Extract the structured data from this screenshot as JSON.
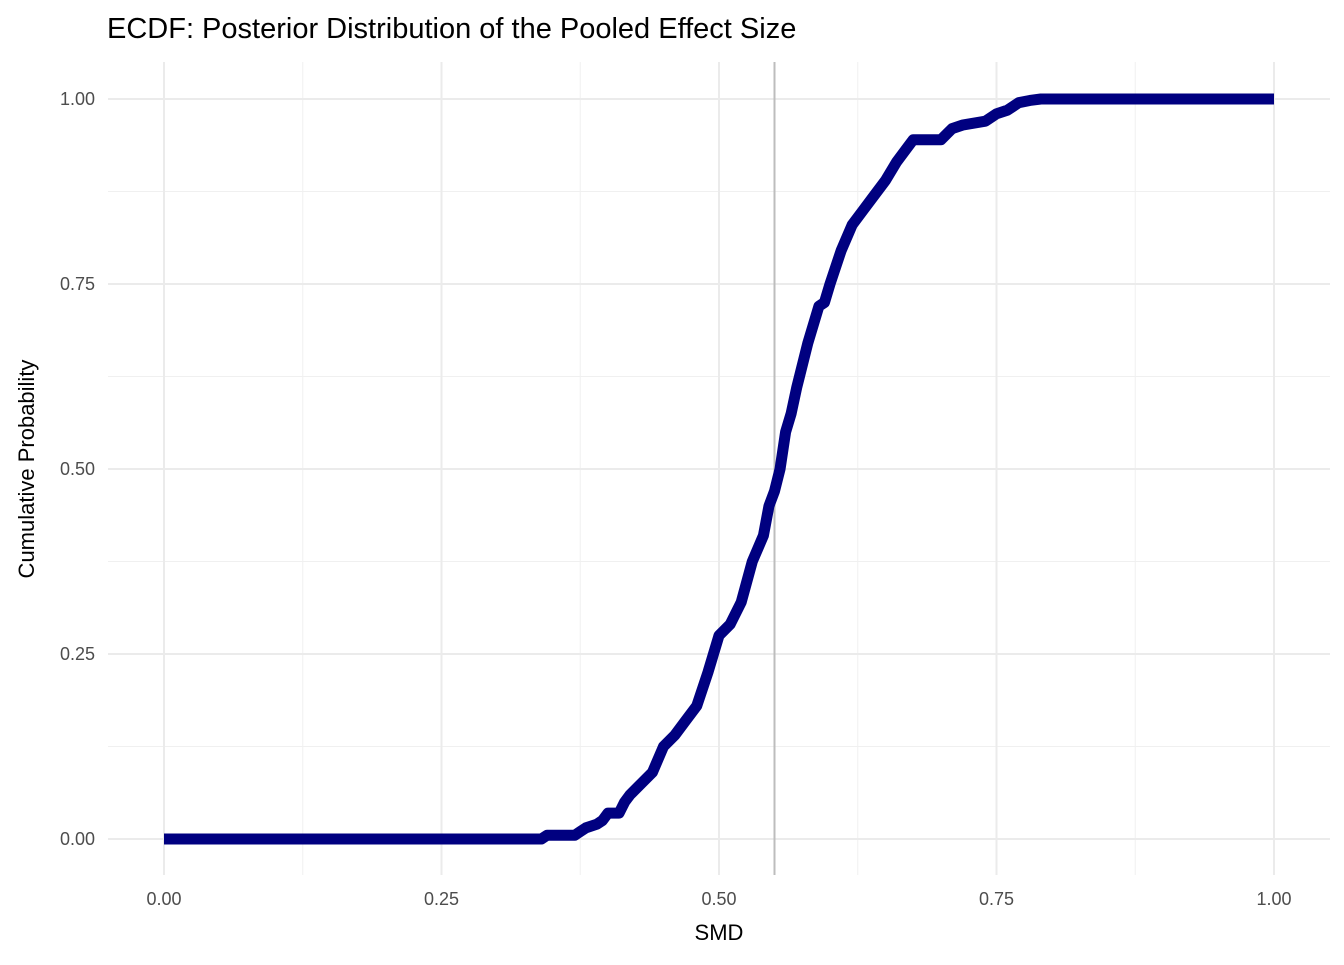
{
  "chart_data": {
    "type": "line",
    "title": "ECDF: Posterior Distribution of the Pooled Effect Size",
    "xlabel": "SMD",
    "ylabel": "Cumulative Probability",
    "xlim": [
      0.0,
      1.0
    ],
    "ylim": [
      0.0,
      1.0
    ],
    "x_ticks": [
      "0.00",
      "0.25",
      "0.50",
      "0.75",
      "1.00"
    ],
    "y_ticks": [
      "0.00",
      "0.25",
      "0.50",
      "0.75",
      "1.00"
    ],
    "grid": true,
    "legend": "none",
    "reference_line": {
      "orientation": "vertical",
      "x": 0.55,
      "color": "#bdbdbd"
    },
    "series": [
      {
        "color": "#000080",
        "x": [
          0.0,
          0.34,
          0.345,
          0.37,
          0.375,
          0.38,
          0.39,
          0.395,
          0.4,
          0.41,
          0.415,
          0.42,
          0.43,
          0.44,
          0.45,
          0.46,
          0.47,
          0.48,
          0.49,
          0.5,
          0.51,
          0.52,
          0.53,
          0.54,
          0.545,
          0.55,
          0.555,
          0.56,
          0.565,
          0.57,
          0.58,
          0.59,
          0.595,
          0.6,
          0.61,
          0.62,
          0.63,
          0.64,
          0.65,
          0.66,
          0.67,
          0.675,
          0.7,
          0.71,
          0.72,
          0.74,
          0.75,
          0.76,
          0.77,
          0.78,
          0.79,
          1.0
        ],
        "y": [
          0.0,
          0.0,
          0.005,
          0.005,
          0.01,
          0.015,
          0.02,
          0.025,
          0.035,
          0.035,
          0.05,
          0.06,
          0.075,
          0.09,
          0.125,
          0.14,
          0.16,
          0.18,
          0.225,
          0.275,
          0.29,
          0.32,
          0.375,
          0.41,
          0.45,
          0.47,
          0.5,
          0.55,
          0.575,
          0.61,
          0.67,
          0.72,
          0.725,
          0.75,
          0.795,
          0.83,
          0.85,
          0.87,
          0.89,
          0.915,
          0.935,
          0.945,
          0.945,
          0.96,
          0.965,
          0.97,
          0.98,
          0.985,
          0.995,
          0.998,
          1.0,
          1.0
        ]
      }
    ]
  }
}
